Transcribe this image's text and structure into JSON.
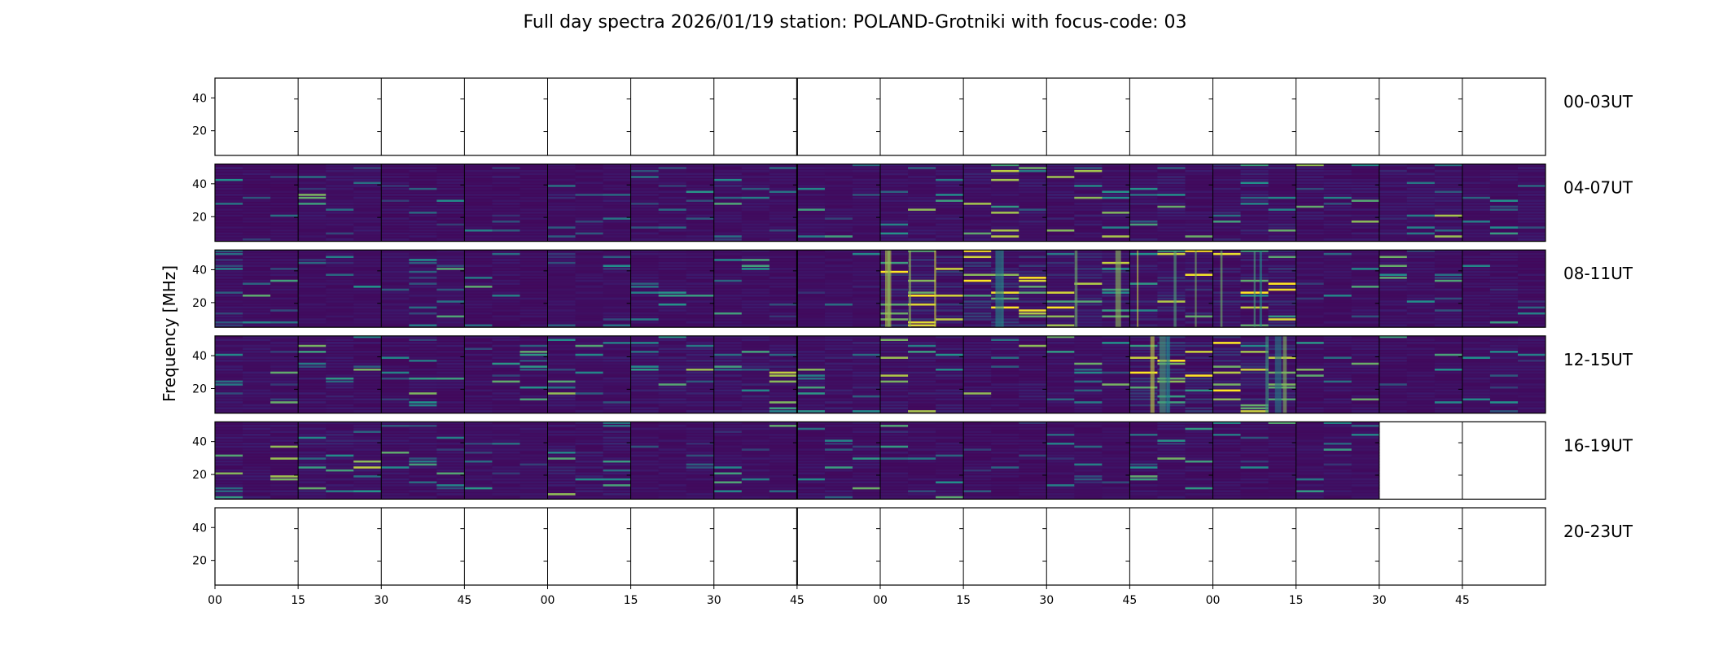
{
  "chart_data": {
    "type": "heatmap",
    "title": "Full day spectra 2026/01/19 station: POLAND-Grotniki with focus-code: 03",
    "ylabel": "Frequency [MHz]",
    "xlabel": "",
    "colormap": "viridis",
    "colors": {
      "low": "#440154",
      "mid": "#21918c",
      "high": "#fde725"
    },
    "y_ticks": [
      20,
      40
    ],
    "y_ticks_last_row": [
      20,
      40
    ],
    "ylim": [
      5,
      52
    ],
    "x_tick_labels": [
      "00",
      "15",
      "30",
      "45",
      "00",
      "15",
      "30",
      "45",
      "00",
      "15",
      "30",
      "45",
      "00",
      "15",
      "30",
      "45"
    ],
    "minutes_per_panel": 15,
    "panels_per_row": 16,
    "rows": [
      {
        "label": "00-03UT",
        "hours": [
          0,
          1,
          2,
          3
        ],
        "panels_with_data": 0
      },
      {
        "label": "04-07UT",
        "hours": [
          4,
          5,
          6,
          7
        ],
        "panels_with_data": 16,
        "intensity": [
          0.2,
          0.35,
          0.3,
          0.22,
          0.25,
          0.3,
          0.28,
          0.3,
          0.4,
          0.45,
          0.45,
          0.45,
          0.5,
          0.4,
          0.45,
          0.35
        ]
      },
      {
        "label": "08-11UT",
        "hours": [
          8,
          9,
          10,
          11
        ],
        "panels_with_data": 16,
        "intensity": [
          0.3,
          0.25,
          0.3,
          0.3,
          0.28,
          0.3,
          0.3,
          0.25,
          0.65,
          0.7,
          0.55,
          0.55,
          0.6,
          0.3,
          0.35,
          0.3
        ]
      },
      {
        "label": "12-15UT",
        "hours": [
          12,
          13,
          14,
          15
        ],
        "panels_with_data": 16,
        "intensity": [
          0.35,
          0.4,
          0.35,
          0.35,
          0.4,
          0.45,
          0.45,
          0.45,
          0.45,
          0.4,
          0.35,
          0.65,
          0.6,
          0.35,
          0.3,
          0.3
        ]
      },
      {
        "label": "16-19UT",
        "hours": [
          16,
          17,
          18,
          19
        ],
        "panels_with_data": 14,
        "intensity": [
          0.4,
          0.45,
          0.35,
          0.3,
          0.45,
          0.3,
          0.3,
          0.35,
          0.3,
          0.25,
          0.25,
          0.35,
          0.3,
          0.3
        ]
      },
      {
        "label": "20-23UT",
        "hours": [
          20,
          21,
          22,
          23
        ],
        "panels_with_data": 0
      }
    ]
  }
}
